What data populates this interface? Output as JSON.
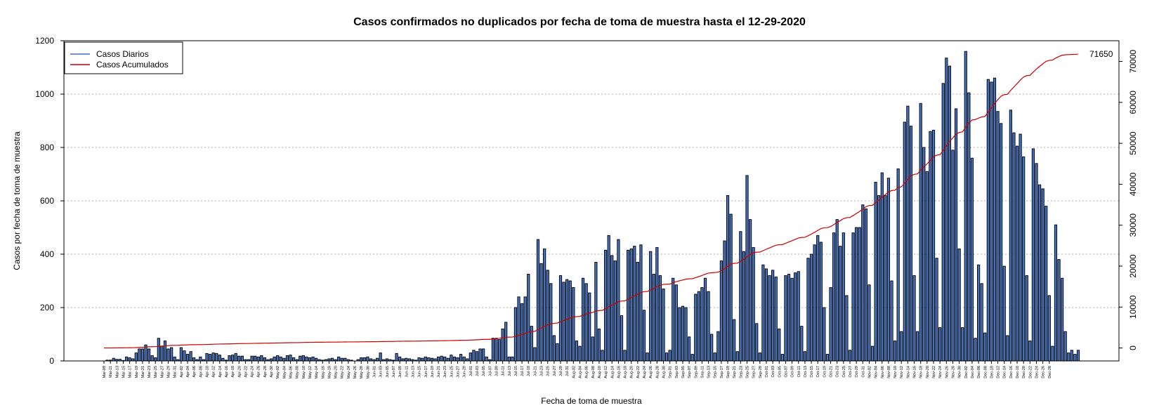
{
  "chart_data": {
    "type": "bar",
    "title": "Casos confirmados no duplicados por fecha de toma de muestra hasta el 12-29-2020",
    "xlabel": "Fecha de toma de muestra",
    "ylabel": "Casos por fecha de toma de muestra",
    "ylim": [
      0,
      1200
    ],
    "y_ticks": [
      0,
      200,
      400,
      600,
      800,
      1000,
      1200
    ],
    "y2lim": [
      -3160,
      75060
    ],
    "y2_ticks": [
      0,
      10000,
      20000,
      30000,
      40000,
      50000,
      60000,
      70000
    ],
    "grid": "horizontal dotted",
    "legend_position": "top-left",
    "final_cumulative_label": "71650",
    "x_tick_labels": [
      "Mar-09",
      "Mar-11",
      "Mar-13",
      "Mar-15",
      "Mar-17",
      "Mar-19",
      "Mar-21",
      "Mar-23",
      "Mar-25",
      "Mar-27",
      "Mar-29",
      "Mar-31",
      "Apr-02",
      "Apr-04",
      "Apr-06",
      "Apr-08",
      "Apr-10",
      "Apr-12",
      "Apr-14",
      "Apr-16",
      "Apr-18",
      "Apr-20",
      "Apr-22",
      "Apr-24",
      "Apr-26",
      "Apr-28",
      "Apr-30",
      "May-02",
      "May-04",
      "May-06",
      "May-08",
      "May-10",
      "May-12",
      "May-14",
      "May-16",
      "May-18",
      "May-20",
      "May-22",
      "May-24",
      "May-26",
      "May-28",
      "May-30",
      "Jun-01",
      "Jun-03",
      "Jun-05",
      "Jun-07",
      "Jun-09",
      "Jun-11",
      "Jun-13",
      "Jun-15",
      "Jun-17",
      "Jun-19",
      "Jun-21",
      "Jun-23",
      "Jun-25",
      "Jun-27",
      "Jun-29",
      "Jul-01",
      "Jul-03",
      "Jul-05",
      "Jul-07",
      "Jul-09",
      "Jul-11",
      "Jul-13",
      "Jul-15",
      "Jul-17",
      "Jul-19",
      "Jul-21",
      "Jul-23",
      "Jul-25",
      "Jul-27",
      "Jul-29",
      "Jul-31",
      "Aug-02",
      "Aug-04",
      "Aug-06",
      "Aug-08",
      "Aug-10",
      "Aug-12",
      "Aug-14",
      "Aug-16",
      "Aug-18",
      "Aug-20",
      "Aug-22",
      "Aug-24",
      "Aug-26",
      "Aug-28",
      "Aug-30",
      "Sep-01",
      "Sep-03",
      "Sep-05",
      "Sep-07",
      "Sep-09",
      "Sep-11",
      "Sep-13",
      "Sep-15",
      "Sep-17",
      "Sep-19",
      "Sep-21",
      "Sep-23",
      "Sep-25",
      "Sep-27",
      "Sep-29",
      "Oct-01",
      "Oct-03",
      "Oct-05",
      "Oct-07",
      "Oct-09",
      "Oct-11",
      "Oct-13",
      "Oct-15",
      "Oct-17",
      "Oct-19",
      "Oct-21",
      "Oct-23",
      "Oct-25",
      "Oct-27",
      "Oct-29",
      "Oct-31",
      "Nov-02",
      "Nov-04",
      "Nov-06",
      "Nov-08",
      "Nov-10",
      "Nov-12",
      "Nov-14",
      "Nov-16",
      "Nov-18",
      "Nov-20",
      "Nov-22",
      "Nov-24",
      "Nov-26",
      "Nov-28",
      "Nov-30",
      "Dec-02",
      "Dec-04",
      "Dec-06",
      "Dec-08",
      "Dec-10",
      "Dec-12",
      "Dec-14",
      "Dec-16",
      "Dec-18",
      "Dec-20",
      "Dec-22",
      "Dec-24",
      "Dec-26",
      "Dec-28"
    ],
    "series": [
      {
        "name": "Casos Diarios",
        "color": "#4472c4",
        "x_start": "2020-03-09",
        "values": [
          0,
          3,
          3,
          10,
          6,
          6,
          2,
          15,
          12,
          8,
          30,
          45,
          45,
          60,
          45,
          20,
          12,
          85,
          55,
          75,
          45,
          50,
          15,
          5,
          50,
          38,
          25,
          35,
          12,
          5,
          15,
          5,
          28,
          25,
          30,
          28,
          22,
          10,
          3,
          20,
          22,
          28,
          18,
          18,
          5,
          5,
          18,
          18,
          15,
          20,
          12,
          5,
          8,
          15,
          20,
          15,
          10,
          20,
          22,
          12,
          5,
          18,
          20,
          15,
          12,
          15,
          10,
          5,
          3,
          5,
          8,
          10,
          5,
          15,
          10,
          10,
          5,
          3,
          0,
          5,
          12,
          12,
          15,
          8,
          5,
          10,
          30,
          5,
          8,
          5,
          3,
          28,
          15,
          8,
          10,
          8,
          5,
          3,
          12,
          10,
          15,
          12,
          10,
          8,
          15,
          18,
          15,
          10,
          22,
          15,
          12,
          25,
          15,
          8,
          30,
          40,
          35,
          45,
          45,
          15,
          5,
          85,
          85,
          80,
          120,
          145,
          15,
          15,
          200,
          240,
          215,
          240,
          325,
          130,
          50,
          455,
          365,
          420,
          340,
          290,
          95,
          65,
          320,
          295,
          305,
          300,
          275,
          75,
          55,
          310,
          290,
          255,
          90,
          370,
          120,
          40,
          415,
          470,
          395,
          375,
          455,
          170,
          40,
          415,
          420,
          430,
          370,
          435,
          190,
          30,
          410,
          325,
          425,
          320,
          270,
          30,
          40,
          310,
          285,
          200,
          205,
          200,
          90,
          25,
          250,
          260,
          275,
          310,
          260,
          100,
          30,
          110,
          375,
          450,
          620,
          550,
          155,
          35,
          485,
          410,
          695,
          530,
          425,
          140,
          30,
          360,
          345,
          320,
          340,
          315,
          120,
          25,
          320,
          325,
          310,
          330,
          335,
          130,
          35,
          385,
          400,
          435,
          470,
          445,
          200,
          25,
          275,
          480,
          530,
          430,
          480,
          245,
          40,
          480,
          500,
          500,
          585,
          570,
          285,
          55,
          670,
          620,
          705,
          620,
          685,
          300,
          75,
          720,
          110,
          895,
          955,
          880,
          320,
          110,
          965,
          800,
          710,
          860,
          865,
          385,
          125,
          1040,
          1135,
          1105,
          790,
          945,
          420,
          125,
          1160,
          1005,
          760,
          85,
          360,
          290,
          105,
          1055,
          1045,
          1060,
          935,
          890,
          355,
          95,
          940,
          855,
          805,
          850,
          765,
          320,
          75,
          795,
          740,
          660,
          645,
          580,
          245,
          55,
          510,
          380,
          310,
          110,
          30,
          40,
          25,
          40
        ]
      },
      {
        "name": "Casos Acumulados",
        "color": "#cc0000"
      }
    ]
  }
}
